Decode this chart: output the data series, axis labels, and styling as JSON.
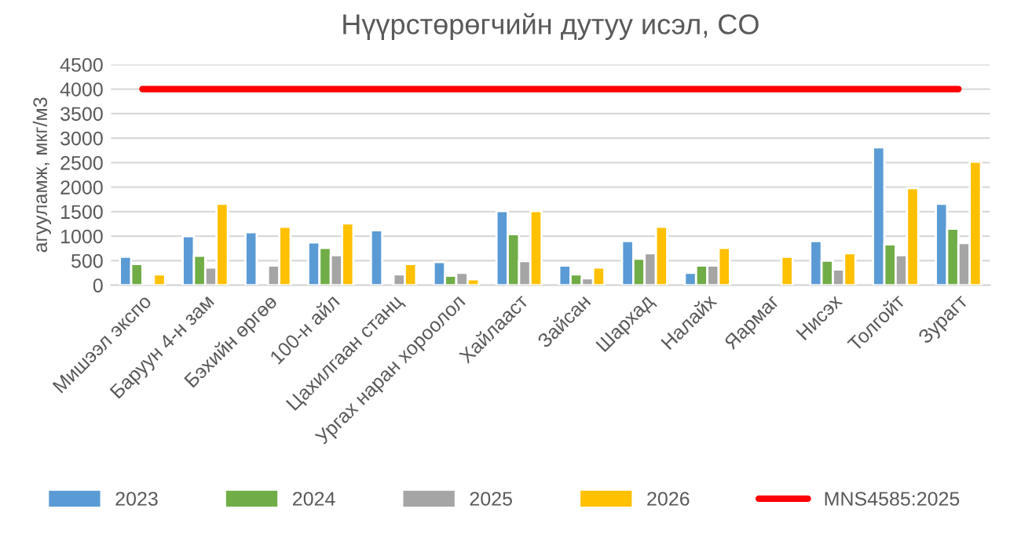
{
  "chart_data": {
    "type": "bar",
    "title": "Нүүрстөрөгчийн дутуу исэл, CO",
    "ylabel": "агууламж, мкг/м3",
    "categories": [
      "Мишээл экспо",
      "Баруун 4-н зам",
      "Бэхийн өргөө",
      "100-н айл",
      "Цахилгаан станц",
      "Ургах наран хороолол",
      "Хайлааст",
      "Зайсан",
      "Шархад",
      "Налайх",
      "Яармаг",
      "Нисэх",
      "Толгойт",
      "Зурагт"
    ],
    "series": [
      {
        "name": "2023",
        "color": "#5b9bd5",
        "values": [
          580,
          1000,
          1080,
          870,
          1120,
          470,
          1510,
          400,
          900,
          250,
          null,
          900,
          2810,
          1660
        ]
      },
      {
        "name": "2024",
        "color": "#70ad47",
        "values": [
          430,
          600,
          null,
          760,
          null,
          190,
          1040,
          220,
          540,
          400,
          null,
          500,
          830,
          1150
        ]
      },
      {
        "name": "2025",
        "color": "#a5a5a5",
        "values": [
          40,
          360,
          400,
          610,
          220,
          250,
          490,
          140,
          650,
          400,
          null,
          320,
          610,
          860
        ]
      },
      {
        "name": "2026",
        "color": "#ffc000",
        "values": [
          220,
          1660,
          1190,
          1260,
          430,
          120,
          1510,
          360,
          1190,
          760,
          580,
          650,
          1980,
          2520
        ]
      },
      {
        "name": "MNS4585:2025",
        "color": "#ff0000",
        "type": "line",
        "values": [
          4000,
          4000,
          4000,
          4000,
          4000,
          4000,
          4000,
          4000,
          4000,
          4000,
          4000,
          4000,
          4000,
          4000
        ]
      }
    ],
    "ylim": [
      0,
      4500
    ],
    "yticks": [
      0,
      500,
      1000,
      1500,
      2000,
      2500,
      3000,
      3500,
      4000,
      4500
    ],
    "grid": "y",
    "legend": "bottom"
  }
}
